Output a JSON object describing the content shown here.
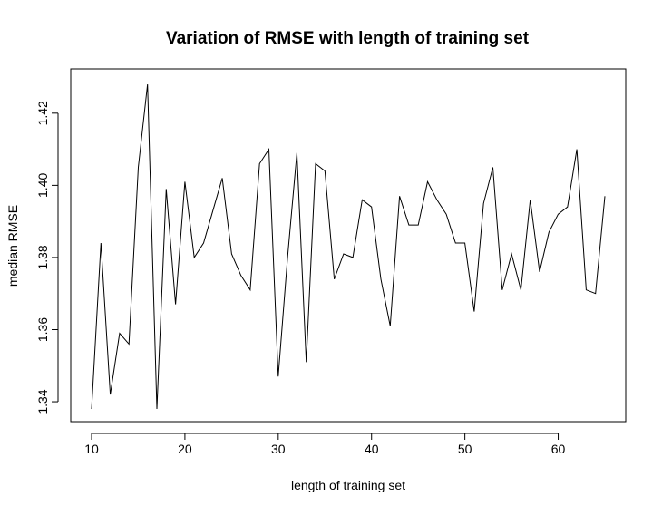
{
  "chart_data": {
    "type": "line",
    "title": "Variation of RMSE with length of training set",
    "xlabel": "length of training set",
    "ylabel": "median RMSE",
    "xlim": [
      10,
      65
    ],
    "ylim": [
      1.338,
      1.428
    ],
    "xticks": [
      10,
      20,
      30,
      40,
      50,
      60
    ],
    "yticks": [
      1.34,
      1.36,
      1.38,
      1.4,
      1.42
    ],
    "ytick_labels": [
      "1.34",
      "1.36",
      "1.38",
      "1.40",
      "1.42"
    ],
    "grid": false,
    "line_color": "#000000",
    "x": [
      10,
      11,
      12,
      13,
      14,
      15,
      16,
      17,
      18,
      19,
      20,
      21,
      22,
      23,
      24,
      25,
      26,
      27,
      28,
      29,
      30,
      31,
      32,
      33,
      34,
      35,
      36,
      37,
      38,
      39,
      40,
      41,
      42,
      43,
      44,
      45,
      46,
      47,
      48,
      49,
      50,
      51,
      52,
      53,
      54,
      55,
      56,
      57,
      58,
      59,
      60,
      61,
      62,
      63,
      64,
      65
    ],
    "y": [
      1.338,
      1.384,
      1.342,
      1.359,
      1.356,
      1.405,
      1.428,
      1.338,
      1.399,
      1.367,
      1.401,
      1.38,
      1.384,
      1.393,
      1.402,
      1.381,
      1.375,
      1.371,
      1.406,
      1.41,
      1.347,
      1.38,
      1.409,
      1.351,
      1.406,
      1.404,
      1.374,
      1.381,
      1.38,
      1.396,
      1.394,
      1.374,
      1.361,
      1.397,
      1.389,
      1.389,
      1.401,
      1.396,
      1.392,
      1.384,
      1.384,
      1.365,
      1.395,
      1.405,
      1.371,
      1.381,
      1.371,
      1.396,
      1.376,
      1.387,
      1.392,
      1.394,
      1.41,
      1.371,
      1.37,
      1.397
    ]
  }
}
